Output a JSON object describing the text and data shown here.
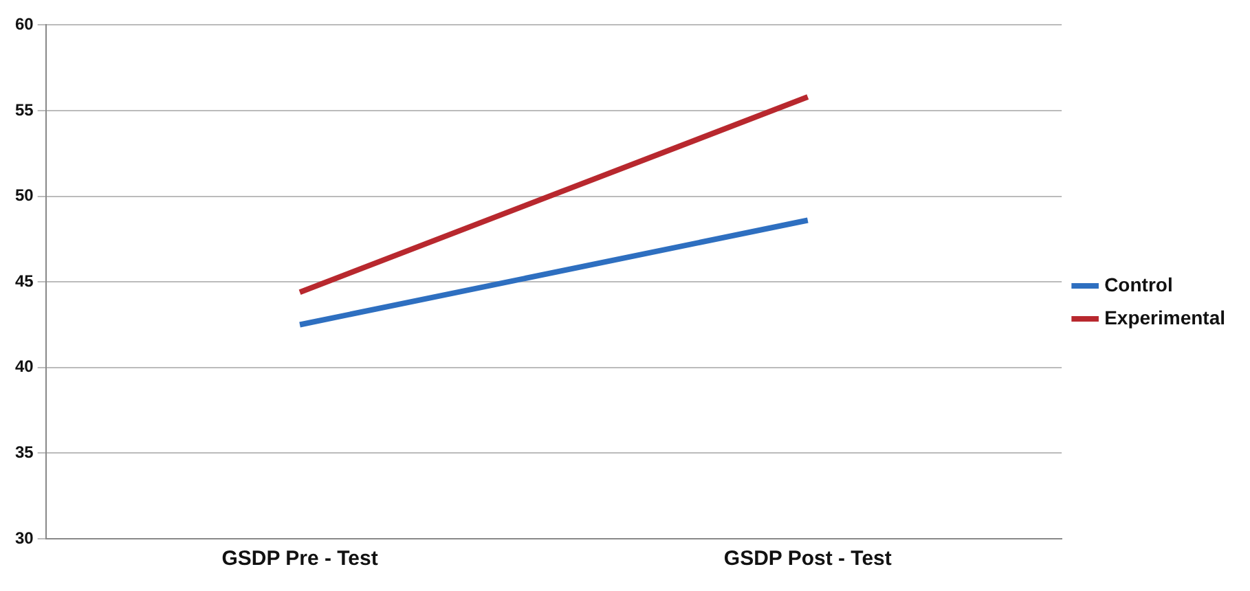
{
  "chart_data": {
    "type": "line",
    "categories": [
      "GSDP Pre - Test",
      "GSDP Post - Test"
    ],
    "series": [
      {
        "name": "Control",
        "color": "#2e6fc0",
        "values": [
          42.5,
          48.6
        ]
      },
      {
        "name": "Experimental",
        "color": "#b8282e",
        "values": [
          44.4,
          55.8
        ]
      }
    ],
    "ylim": [
      30,
      60
    ],
    "yticks": [
      30,
      35,
      40,
      45,
      50,
      55,
      60
    ],
    "grid": "y",
    "legend": "right",
    "marker": "none",
    "line_style": "solid"
  }
}
